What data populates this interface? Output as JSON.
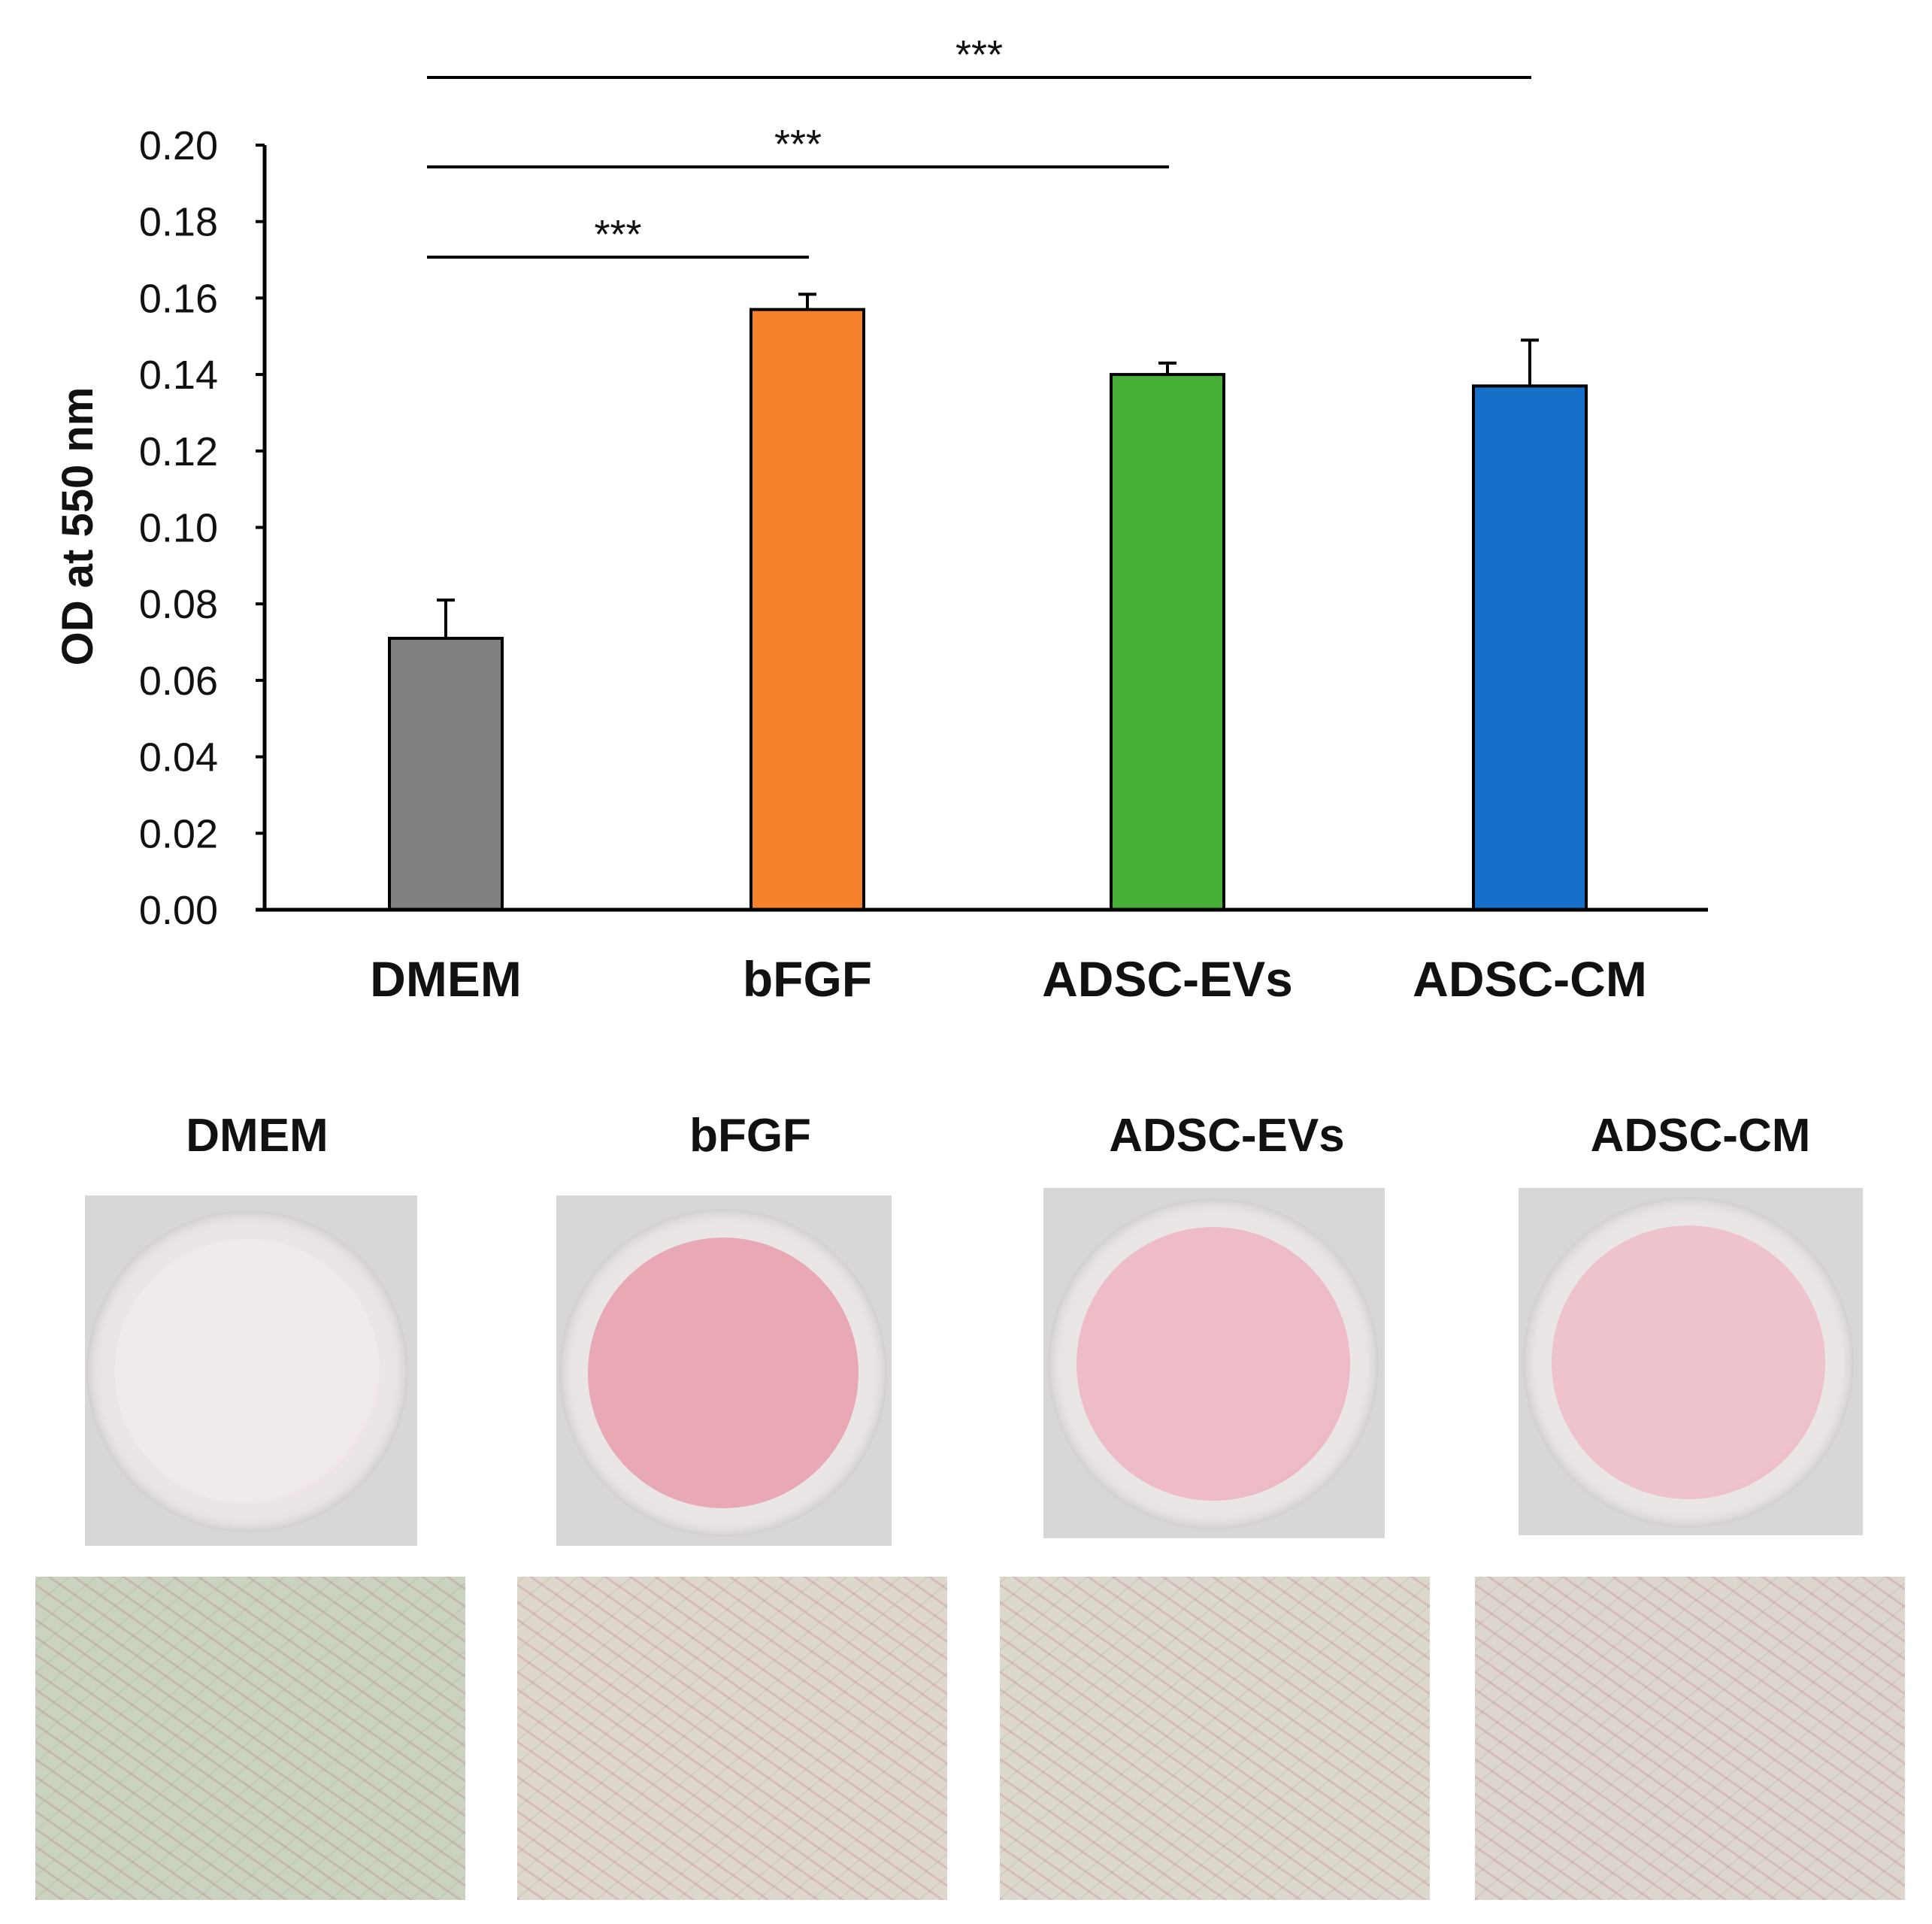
{
  "chart_data": {
    "type": "bar",
    "categories": [
      "DMEM",
      "bFGF",
      "ADSC-EVs",
      "ADSC-CM"
    ],
    "values": [
      0.071,
      0.157,
      0.14,
      0.137
    ],
    "errors": [
      0.01,
      0.004,
      0.003,
      0.012
    ],
    "colors": [
      "#808080",
      "#f5822a",
      "#45b035",
      "#1670c9"
    ],
    "ylabel": "OD at 550 nm",
    "ylim": [
      0,
      0.2
    ],
    "yticks": [
      "0.00",
      "0.02",
      "0.04",
      "0.06",
      "0.08",
      "0.10",
      "0.12",
      "0.14",
      "0.16",
      "0.18",
      "0.20"
    ],
    "significance": [
      {
        "from": "DMEM",
        "to": "bFGF",
        "label": "***"
      },
      {
        "from": "DMEM",
        "to": "ADSC-EVs",
        "label": "***"
      },
      {
        "from": "DMEM",
        "to": "ADSC-CM",
        "label": "***"
      }
    ]
  },
  "panels": {
    "titles": [
      "DMEM",
      "bFGF",
      "ADSC-EVs",
      "ADSC-CM"
    ],
    "well_tint": [
      "#f1eaea",
      "#e9a9b4",
      "#eebcc6",
      "#efc3cb"
    ],
    "micro_tint": [
      "#c9d3bf",
      "#ded7cc",
      "#dcd8cd",
      "#ddd6cf"
    ]
  }
}
